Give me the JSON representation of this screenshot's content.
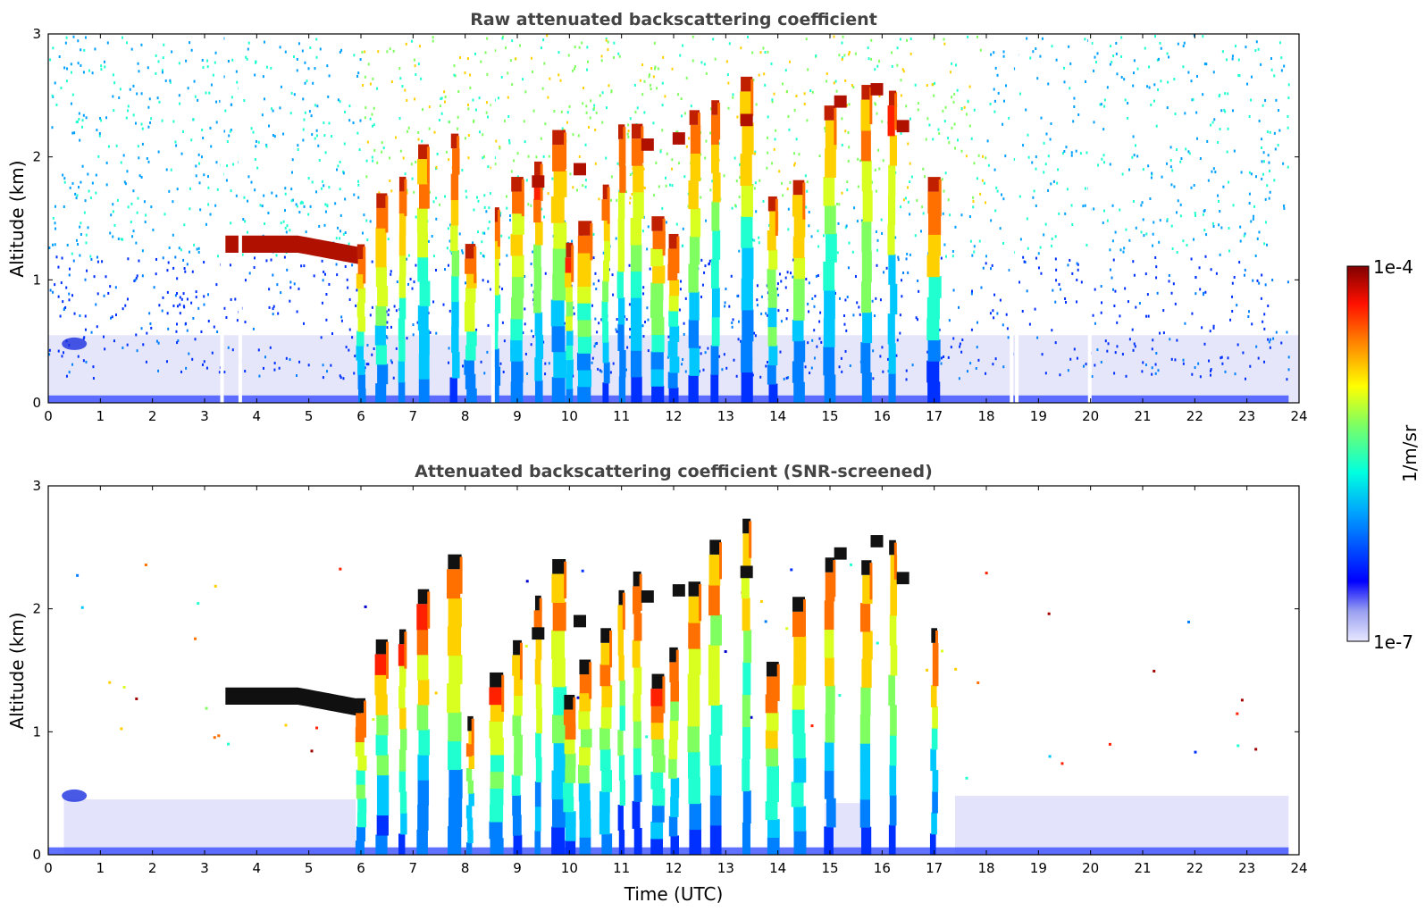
{
  "chart_data": [
    {
      "type": "heatmap",
      "title": "Raw attenuated backscattering coefficient",
      "xlabel": "",
      "ylabel": "Altitude (km)",
      "xlim": [
        0,
        24
      ],
      "ylim": [
        0,
        3
      ],
      "xticks": [
        "0",
        "1",
        "2",
        "3",
        "4",
        "5",
        "6",
        "7",
        "8",
        "9",
        "10",
        "11",
        "12",
        "13",
        "14",
        "15",
        "16",
        "17",
        "18",
        "19",
        "20",
        "21",
        "22",
        "23",
        "24"
      ],
      "yticks": [
        "0",
        "1",
        "2",
        "3"
      ],
      "colormap": "jet",
      "layers": [
        {
          "name": "elevated layer",
          "x": [
            3.4,
            6.0
          ],
          "altitude": [
            1.15,
            1.35
          ],
          "value": "1e-4"
        }
      ],
      "columns": [
        6.0,
        6.4,
        6.8,
        7.2,
        7.8,
        8.1,
        8.6,
        9.0,
        9.4,
        9.8,
        10.0,
        10.3,
        10.7,
        11.0,
        11.3,
        11.7,
        12.0,
        12.4,
        12.8,
        13.4,
        13.9,
        14.4,
        15.0,
        15.7,
        16.2,
        17.0
      ]
    },
    {
      "type": "heatmap",
      "title": "Attenuated backscattering coefficient (SNR-screened)",
      "xlabel": "Time (UTC)",
      "ylabel": "Altitude (km)",
      "xlim": [
        0,
        24
      ],
      "ylim": [
        0,
        3
      ],
      "xticks": [
        "0",
        "1",
        "2",
        "3",
        "4",
        "5",
        "6",
        "7",
        "8",
        "9",
        "10",
        "11",
        "12",
        "13",
        "14",
        "15",
        "16",
        "17",
        "18",
        "19",
        "20",
        "21",
        "22",
        "23",
        "24"
      ],
      "yticks": [
        "0",
        "1",
        "2",
        "3"
      ],
      "colormap": "jet",
      "layers": [
        {
          "name": "elevated layer",
          "x": [
            3.4,
            6.0
          ],
          "altitude": [
            1.15,
            1.4
          ],
          "value": "saturated"
        }
      ],
      "columns": [
        6.0,
        6.4,
        6.8,
        7.2,
        7.8,
        8.1,
        8.6,
        9.0,
        9.4,
        9.8,
        10.0,
        10.3,
        10.7,
        11.0,
        11.3,
        11.7,
        12.0,
        12.4,
        12.8,
        13.4,
        13.9,
        14.4,
        15.0,
        15.7,
        16.2,
        17.0
      ]
    }
  ],
  "colorbar": {
    "max_label": "1e-4",
    "min_label": "1e-7",
    "unit_label": "1/m/sr"
  }
}
